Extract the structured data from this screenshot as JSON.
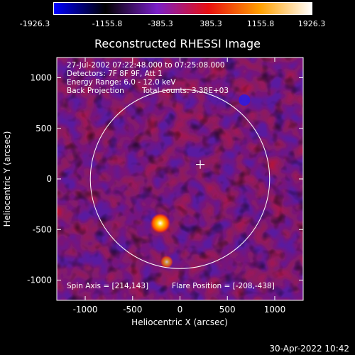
{
  "colorbar": {
    "labels": [
      "-1926.3",
      "-1155.8",
      "-385.3",
      "385.3",
      "1155.8",
      "1926.3"
    ],
    "values": [
      -1926.3,
      -1155.8,
      -385.3,
      385.3,
      1155.8,
      1926.3
    ],
    "colormap": [
      "#0000ff",
      "#000000",
      "#7a1fc8",
      "#e81010",
      "#ffa000",
      "#ffffff"
    ]
  },
  "chart_data": {
    "type": "heatmap",
    "title": "Reconstructed RHESSI Image",
    "xlabel": "Heliocentric X (arcsec)",
    "ylabel": "Heliocentric Y (arcsec)",
    "xlim": [
      -1300,
      1300
    ],
    "ylim": [
      -1200,
      1200
    ],
    "x_ticks": [
      -1000,
      -500,
      0,
      500,
      1000
    ],
    "x_tick_labels": [
      "-1000",
      "-500",
      "0",
      "500",
      "1000"
    ],
    "y_ticks": [
      -1000,
      -500,
      0,
      500,
      1000
    ],
    "y_tick_labels": [
      "-1000",
      "-500",
      "0",
      "500",
      "1000"
    ],
    "value_range": [
      -1926.3,
      1926.3
    ],
    "solar_limb_radius_arcsec": 946,
    "spin_axis": [
      214,
      143
    ],
    "flare_position": [
      -208,
      -438
    ],
    "sources": [
      {
        "x": -208,
        "y": -438,
        "value": 1926.3
      },
      {
        "x": -140,
        "y": -820,
        "value": 1155.8
      },
      {
        "x": 680,
        "y": 780,
        "value": -1926.3
      }
    ]
  },
  "info": {
    "time_range": "27-Jul-2002 07:22:48.000 to 07:25:08.000",
    "detectors": "Detectors: 7F 8F 9F, Att 1",
    "energy_range": "Energy Range: 6.0 - 12.0 keV",
    "method": "Back Projection",
    "total_counts": "Total counts: 3.38E+03",
    "spin_axis_label": "Spin Axis = [214,143]",
    "flare_position_label": "Flare Position = [-208,-438]"
  },
  "timestamp": "30-Apr-2022 10:42"
}
